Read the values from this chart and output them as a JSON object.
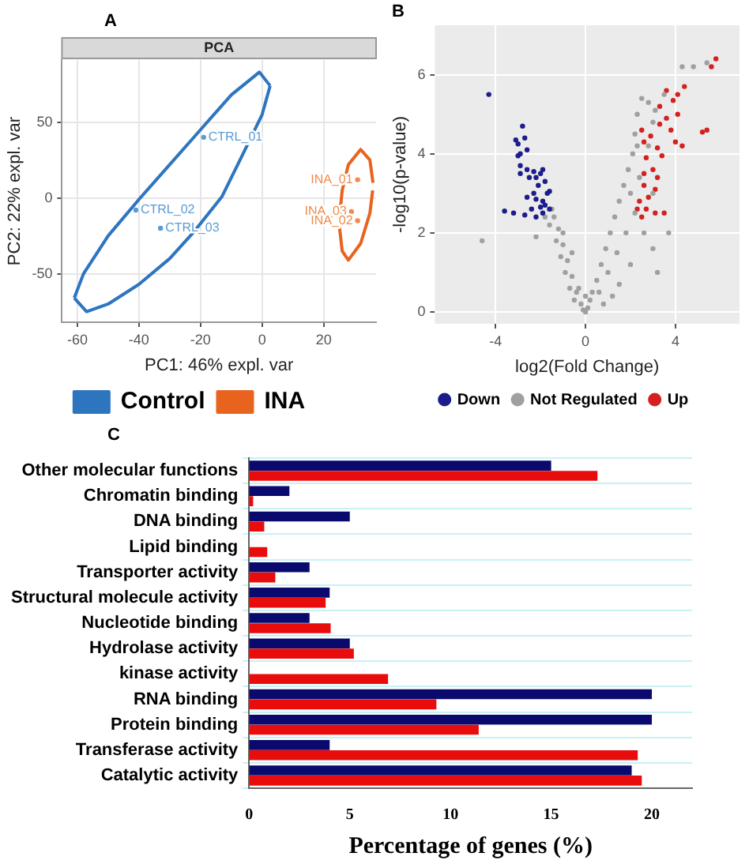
{
  "chart_data": [
    {
      "type": "line",
      "title": "PCA",
      "xlabel": "PC1: 46% expl. var",
      "ylabel": "PC2: 22% expl. var",
      "xlim": [
        -65,
        37
      ],
      "ylim": [
        -82,
        91
      ],
      "xticks": [
        -60,
        -40,
        -20,
        0,
        20
      ],
      "yticks": [
        -50,
        0,
        50
      ],
      "grid": true,
      "legend": "bottom",
      "marker": "none",
      "line_style": "solid",
      "series": [
        {
          "name": "Control",
          "color": "#2e75c0",
          "x": [
            -61,
            -58,
            -50,
            -40,
            -30,
            -20,
            -10,
            -0.9,
            2.6
          ],
          "values": [
            -66,
            -50,
            -25,
            -1,
            22,
            45,
            68,
            83,
            74
          ]
        },
        {
          "color": "#2e75c0",
          "x": [
            -61,
            -57,
            -50,
            -40,
            -30,
            -22,
            -13,
            -6,
            0,
            2.6
          ],
          "values": [
            -66,
            -75,
            -70,
            -57,
            -40,
            -22,
            1,
            30,
            55,
            74
          ]
        },
        {
          "name": "INA",
          "color": "#e8641e",
          "x": [
            25,
            26,
            28,
            32,
            35,
            36
          ],
          "values": [
            -15,
            5,
            22,
            32,
            25,
            10
          ]
        },
        {
          "color": "#e8641e",
          "x": [
            25.1,
            26,
            28,
            32,
            35,
            35.9
          ],
          "values": [
            -19,
            -35,
            -41,
            -30,
            -10,
            5
          ]
        },
        {
          "type": "scatter",
          "marker": "circle",
          "color": "#5b9bd5",
          "x": [
            -19,
            -41,
            -33
          ],
          "values": [
            40,
            -8,
            -20
          ]
        },
        {
          "type": "scatter",
          "marker": "circle",
          "color": "#f08a4b",
          "x": [
            31,
            29,
            31
          ],
          "values": [
            12,
            -9,
            -15
          ]
        }
      ],
      "annotations": [
        "A",
        {
          "text": "CTRL_01",
          "x": -19,
          "y": 40
        },
        {
          "text": "CTRL_02",
          "x": -41,
          "y": -8
        },
        {
          "text": "CTRL_03",
          "x": -33,
          "y": -20
        },
        {
          "text": "INA_01",
          "x": 31,
          "y": 12
        },
        {
          "text": "INA_03",
          "x": 29,
          "y": -9
        },
        {
          "text": "INA_02",
          "x": 31,
          "y": -15
        }
      ]
    },
    {
      "type": "scatter",
      "xlabel": "log2(Fold Change)",
      "ylabel": "-log10(p-value)",
      "xlim": [
        -6.7,
        6.85
      ],
      "ylim": [
        -0.3,
        7.25
      ],
      "xticks": [
        -4,
        0,
        4
      ],
      "yticks": [
        0,
        2,
        4,
        6
      ],
      "grid": true,
      "legend": "bottom",
      "marker": "circle",
      "series": [
        {
          "name": "Down",
          "color": "#1c1c8c",
          "x": [
            -4.3,
            -2.8,
            -3.1,
            -3.0,
            -2.6,
            -2.9,
            -3.0,
            -2.9,
            -2.6,
            -2.3,
            -2.0,
            -1.9,
            -2.2,
            -2.5,
            -1.8,
            -2.1,
            -1.6,
            -1.7,
            -2.6,
            -2.2,
            -1.9,
            -1.8,
            -2.0,
            -2.4,
            -1.6,
            -3.6,
            -3.2,
            -2.7,
            -2.2,
            -1.9,
            -2.9,
            -2.7,
            -2.3
          ],
          "values": [
            5.5,
            4.7,
            4.35,
            4.25,
            4.1,
            4.0,
            3.95,
            3.7,
            3.6,
            3.55,
            3.5,
            3.6,
            3.4,
            3.4,
            3.3,
            3.2,
            3.05,
            3.0,
            2.9,
            2.85,
            2.8,
            2.7,
            2.65,
            2.6,
            2.6,
            2.55,
            2.5,
            2.45,
            2.4,
            2.5,
            3.5,
            4.4,
            3.0
          ]
        },
        {
          "name": "Not Regulated",
          "color": "#a0a0a0",
          "x": [
            -4.6,
            -0.2,
            -0.4,
            -0.6,
            -0.8,
            -1.0,
            -1.2,
            -1.4,
            -1.5,
            -0.5,
            -0.7,
            -0.9,
            -1.1,
            -1.3,
            -1.6,
            -1.8,
            -0.3,
            -0.6,
            -1.0,
            -2.2,
            0,
            0.1,
            -0.1,
            0.2,
            0,
            0.3,
            0.5,
            0.7,
            0.9,
            1.1,
            1.3,
            1.5,
            1.7,
            1.9,
            2.1,
            2.2,
            2.3,
            2.5,
            0.6,
            1.0,
            1.4,
            1.8,
            2.2,
            2.6,
            3.0,
            3.2,
            2.0,
            1.5,
            3.0,
            2.4,
            2.0,
            2.8,
            3.0,
            3.5,
            4.3,
            4.8,
            5.4,
            2.8,
            3.1,
            2.3,
            3.7,
            1.2,
            0.8
          ],
          "values": [
            1.8,
            0.2,
            0.5,
            0.9,
            1.3,
            1.7,
            2.1,
            2.4,
            2.6,
            0.3,
            0.6,
            1.0,
            1.4,
            1.8,
            2.2,
            2.4,
            0.6,
            1.5,
            2.0,
            1.9,
            0,
            0.1,
            0.05,
            0.3,
            0.4,
            0.5,
            0.8,
            1.2,
            1.6,
            2.0,
            2.4,
            2.8,
            3.2,
            3.6,
            4.0,
            4.5,
            5.0,
            5.4,
            0.5,
            1.0,
            1.5,
            2.0,
            2.5,
            2.0,
            1.6,
            1.0,
            1.2,
            0.7,
            3.0,
            3.4,
            3.0,
            4.2,
            4.8,
            5.5,
            6.2,
            6.2,
            6.3,
            5.3,
            5.1,
            4.2,
            2.0,
            0.4,
            0.2
          ]
        },
        {
          "name": "Up",
          "color": "#d42020",
          "x": [
            5.8,
            5.6,
            4.4,
            4.1,
            3.9,
            4.1,
            3.6,
            3.3,
            3.8,
            5.2,
            4.3,
            4.0,
            3.2,
            3.4,
            2.9,
            2.6,
            2.7,
            2.5,
            3.0,
            3.2,
            2.6,
            3.1,
            2.8,
            2.6,
            2.4,
            2.7,
            3.1,
            2.5,
            2.3,
            3.5,
            5.4,
            3.3,
            3.6
          ],
          "values": [
            6.4,
            6.2,
            5.7,
            5.5,
            5.35,
            5.0,
            4.9,
            4.75,
            4.6,
            4.55,
            4.2,
            4.3,
            4.15,
            3.95,
            4.45,
            4.3,
            3.9,
            4.6,
            3.6,
            3.4,
            3.5,
            3.1,
            2.9,
            3.2,
            2.8,
            2.6,
            2.5,
            2.4,
            2.6,
            2.5,
            4.6,
            5.2,
            5.6
          ]
        }
      ],
      "annotations": [
        "B"
      ]
    },
    {
      "type": "bar",
      "orientation": "horizontal",
      "xlabel": "Percentage of genes (%)",
      "categories": [
        "Other molecular functions",
        "Chromatin binding",
        "DNA binding",
        "Lipid binding",
        "Transporter activity",
        "Structural molecule activity",
        "Nucleotide binding",
        "Hydrolase activity",
        "kinase activity",
        "RNA binding",
        "Protein binding",
        "Transferase activity",
        "Catalytic activity"
      ],
      "xlim": [
        0,
        22
      ],
      "xticks": [
        0,
        5,
        10,
        15,
        20
      ],
      "grid": "y",
      "series": [
        {
          "color": "#0a0a6e",
          "values": [
            15.0,
            2.0,
            5.0,
            null,
            3.0,
            4.0,
            3.0,
            5.0,
            null,
            20.0,
            20.0,
            4.0,
            19.0
          ]
        },
        {
          "color": "#e80c0c",
          "values": [
            17.3,
            0.2,
            0.75,
            0.9,
            1.3,
            3.8,
            4.05,
            5.2,
            6.9,
            9.3,
            11.4,
            19.3,
            19.5
          ]
        }
      ],
      "annotations": [
        "C"
      ]
    }
  ]
}
